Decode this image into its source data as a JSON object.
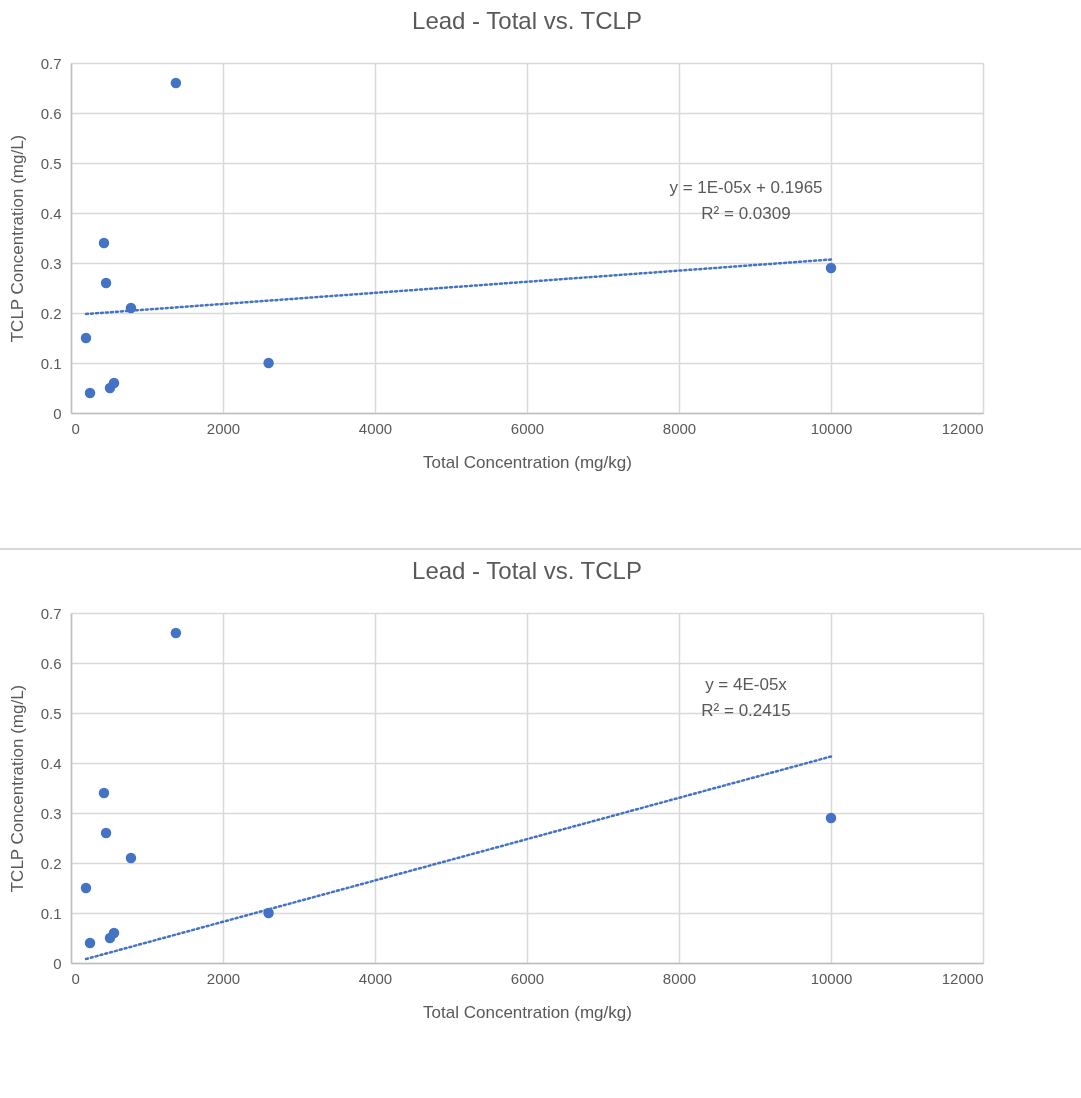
{
  "chart_data": [
    {
      "type": "scatter",
      "title": "Lead - Total vs. TCLP",
      "xlabel": "Total Concentration (mg/kg)",
      "ylabel": "TCLP Concentration (mg/L)",
      "xlim": [
        0,
        12000
      ],
      "xticks": [
        0,
        2000,
        4000,
        6000,
        8000,
        10000,
        12000
      ],
      "ylim": [
        0,
        0.7
      ],
      "yticks": [
        0,
        0.1,
        0.2,
        0.3,
        0.4,
        0.5,
        0.6,
        0.7
      ],
      "grid": true,
      "series": [
        {
          "color": "#4472c4",
          "marker": "circle",
          "x": [
            1380,
            434,
            461,
            789,
            197,
            250,
            513,
            566,
            2600,
            10000
          ],
          "values": [
            0.66,
            0.34,
            0.26,
            0.21,
            0.15,
            0.04,
            0.05,
            0.06,
            0.1,
            0.29
          ]
        },
        {
          "type": "line",
          "color": "#4472c4",
          "line_style": "dotted",
          "x": [
            197,
            10000
          ],
          "values": [
            0.198,
            0.307
          ]
        }
      ],
      "annotations": [
        "y = 1E-05x + 0.1965",
        "R² = 0.0309"
      ]
    },
    {
      "type": "scatter",
      "title": "Lead - Total vs. TCLP",
      "xlabel": "Total Concentration (mg/kg)",
      "ylabel": "TCLP Concentration (mg/L)",
      "xlim": [
        0,
        12000
      ],
      "xticks": [
        0,
        2000,
        4000,
        6000,
        8000,
        10000,
        12000
      ],
      "ylim": [
        0,
        0.7
      ],
      "yticks": [
        0,
        0.1,
        0.2,
        0.3,
        0.4,
        0.5,
        0.6,
        0.7
      ],
      "grid": true,
      "series": [
        {
          "color": "#4472c4",
          "marker": "circle",
          "x": [
            1380,
            434,
            461,
            789,
            197,
            250,
            513,
            566,
            2600,
            10000
          ],
          "values": [
            0.66,
            0.34,
            0.26,
            0.21,
            0.15,
            0.04,
            0.05,
            0.06,
            0.1,
            0.29
          ]
        },
        {
          "type": "line",
          "color": "#4472c4",
          "line_style": "dotted",
          "x": [
            197,
            10000
          ],
          "values": [
            0.008,
            0.413
          ]
        }
      ],
      "annotations": [
        "y = 4E-05x",
        "R² = 0.2415"
      ]
    }
  ]
}
